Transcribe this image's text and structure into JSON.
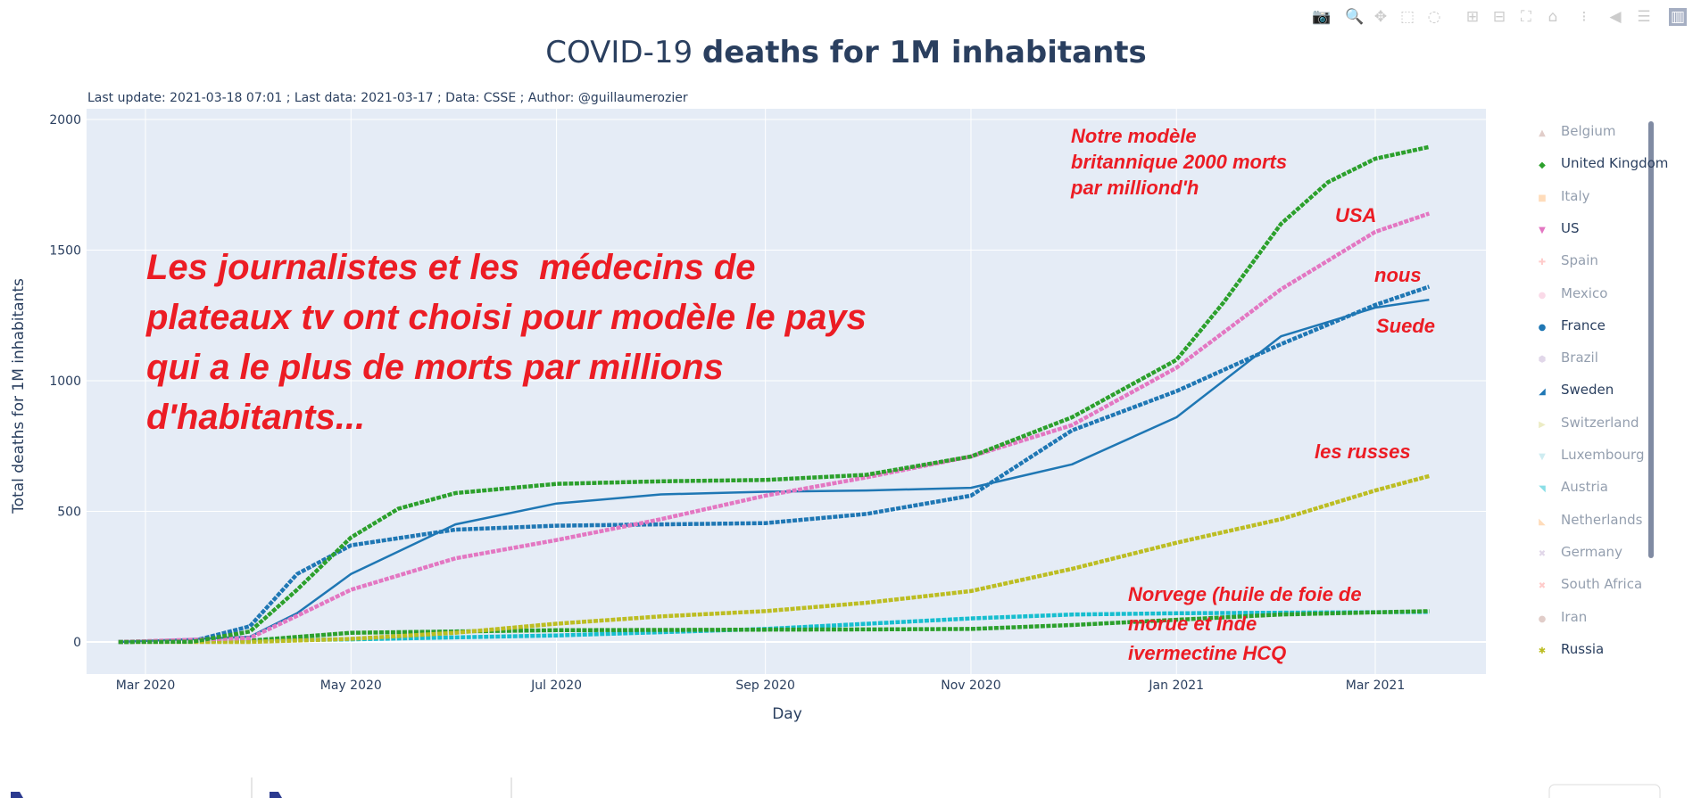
{
  "toolbar": {
    "icons": [
      "camera-icon",
      "zoom-icon",
      "pan-icon",
      "box-select-icon",
      "lasso-select-icon",
      "zoom-in-icon",
      "zoom-out-icon",
      "autoscale-icon",
      "reset-axes-icon",
      "spike-lines-icon",
      "hover-closest-icon",
      "hover-compare-icon",
      "plotly-logo-icon"
    ]
  },
  "chart_data": {
    "type": "line",
    "title_light": "COVID-19 ",
    "title_bold": "deaths for 1M inhabitants",
    "subtitle": "Last update: 2021-03-18 07:01 ; Last data: 2021-03-17 ; Data: CSSE ; Author: @guillaumerozier",
    "xlabel": "Day",
    "ylabel": "Total deaths  for 1M inhabitants",
    "xlim": [
      "2020-02-01",
      "2021-04-15"
    ],
    "ylim": [
      -120,
      2080
    ],
    "x_ticks": [
      "Mar 2020",
      "May 2020",
      "Jul 2020",
      "Sep 2020",
      "Nov 2020",
      "Jan 2021",
      "Mar 2021"
    ],
    "x_tick_dates": [
      "2020-03-01",
      "2020-05-01",
      "2020-07-01",
      "2020-09-01",
      "2020-11-01",
      "2021-01-01",
      "2021-03-01"
    ],
    "y_ticks": [
      0,
      500,
      1000,
      1500,
      2000
    ],
    "grid": true,
    "legend_position": "right",
    "series": [
      {
        "name": "United Kingdom",
        "color": "#2ca02c",
        "points": [
          [
            "2020-02-22",
            0
          ],
          [
            "2020-03-15",
            1
          ],
          [
            "2020-04-01",
            40
          ],
          [
            "2020-04-15",
            200
          ],
          [
            "2020-05-01",
            400
          ],
          [
            "2020-05-15",
            510
          ],
          [
            "2020-06-01",
            570
          ],
          [
            "2020-07-01",
            605
          ],
          [
            "2020-08-01",
            615
          ],
          [
            "2020-09-01",
            620
          ],
          [
            "2020-10-01",
            640
          ],
          [
            "2020-11-01",
            710
          ],
          [
            "2020-12-01",
            860
          ],
          [
            "2021-01-01",
            1080
          ],
          [
            "2021-01-15",
            1300
          ],
          [
            "2021-02-01",
            1600
          ],
          [
            "2021-02-15",
            1760
          ],
          [
            "2021-03-01",
            1850
          ],
          [
            "2021-03-17",
            1895
          ]
        ]
      },
      {
        "name": "US",
        "color": "#e377c2",
        "points": [
          [
            "2020-02-22",
            0
          ],
          [
            "2020-04-01",
            15
          ],
          [
            "2020-04-15",
            100
          ],
          [
            "2020-05-01",
            200
          ],
          [
            "2020-06-01",
            320
          ],
          [
            "2020-07-01",
            390
          ],
          [
            "2020-08-01",
            470
          ],
          [
            "2020-09-01",
            560
          ],
          [
            "2020-10-01",
            630
          ],
          [
            "2020-11-01",
            710
          ],
          [
            "2020-12-01",
            830
          ],
          [
            "2021-01-01",
            1050
          ],
          [
            "2021-02-01",
            1350
          ],
          [
            "2021-03-01",
            1570
          ],
          [
            "2021-03-17",
            1640
          ]
        ]
      },
      {
        "name": "France",
        "color": "#1f77b4",
        "points": [
          [
            "2020-02-22",
            0
          ],
          [
            "2020-03-15",
            3
          ],
          [
            "2020-04-01",
            60
          ],
          [
            "2020-04-15",
            260
          ],
          [
            "2020-05-01",
            370
          ],
          [
            "2020-06-01",
            430
          ],
          [
            "2020-07-01",
            445
          ],
          [
            "2020-08-01",
            450
          ],
          [
            "2020-09-01",
            455
          ],
          [
            "2020-10-01",
            490
          ],
          [
            "2020-11-01",
            560
          ],
          [
            "2020-12-01",
            810
          ],
          [
            "2021-01-01",
            960
          ],
          [
            "2021-02-01",
            1140
          ],
          [
            "2021-03-01",
            1290
          ],
          [
            "2021-03-17",
            1360
          ]
        ]
      },
      {
        "name": "Sweden",
        "color": "#1f77b4",
        "points": [
          [
            "2020-02-22",
            0
          ],
          [
            "2020-04-01",
            20
          ],
          [
            "2020-04-15",
            110
          ],
          [
            "2020-05-01",
            260
          ],
          [
            "2020-06-01",
            450
          ],
          [
            "2020-07-01",
            530
          ],
          [
            "2020-08-01",
            565
          ],
          [
            "2020-09-01",
            575
          ],
          [
            "2020-10-01",
            580
          ],
          [
            "2020-11-01",
            590
          ],
          [
            "2020-12-01",
            680
          ],
          [
            "2021-01-01",
            860
          ],
          [
            "2021-02-01",
            1170
          ],
          [
            "2021-03-01",
            1280
          ],
          [
            "2021-03-17",
            1310
          ]
        ]
      },
      {
        "name": "Russia",
        "color": "#bcbd22",
        "points": [
          [
            "2020-02-22",
            0
          ],
          [
            "2020-04-01",
            0
          ],
          [
            "2020-05-01",
            12
          ],
          [
            "2020-06-01",
            35
          ],
          [
            "2020-07-01",
            70
          ],
          [
            "2020-08-01",
            98
          ],
          [
            "2020-09-01",
            118
          ],
          [
            "2020-10-01",
            150
          ],
          [
            "2020-11-01",
            195
          ],
          [
            "2020-12-01",
            280
          ],
          [
            "2021-01-01",
            380
          ],
          [
            "2021-02-01",
            470
          ],
          [
            "2021-03-01",
            580
          ],
          [
            "2021-03-17",
            635
          ]
        ]
      },
      {
        "color": "#2ca02c",
        "points": [
          [
            "2020-02-22",
            0
          ],
          [
            "2020-04-01",
            5
          ],
          [
            "2020-05-01",
            35
          ],
          [
            "2020-07-01",
            45
          ],
          [
            "2020-10-01",
            48
          ],
          [
            "2020-11-01",
            50
          ],
          [
            "2020-12-01",
            65
          ],
          [
            "2021-01-01",
            85
          ],
          [
            "2021-02-01",
            105
          ],
          [
            "2021-03-17",
            118
          ]
        ]
      },
      {
        "color": "#17becf",
        "points": [
          [
            "2020-02-22",
            0
          ],
          [
            "2020-05-01",
            10
          ],
          [
            "2020-07-01",
            25
          ],
          [
            "2020-09-01",
            50
          ],
          [
            "2020-11-01",
            90
          ],
          [
            "2020-12-01",
            105
          ],
          [
            "2021-01-01",
            110
          ],
          [
            "2021-03-17",
            115
          ]
        ]
      }
    ],
    "legend": [
      {
        "name": "Belgium",
        "marker": "▲",
        "color": "#c49c94",
        "visible": false
      },
      {
        "name": "United Kingdom",
        "marker": "◆",
        "color": "#2ca02c",
        "visible": true
      },
      {
        "name": "Italy",
        "marker": "■",
        "color": "#ffbb78",
        "visible": false
      },
      {
        "name": "US",
        "marker": "▼",
        "color": "#e377c2",
        "visible": true
      },
      {
        "name": "Spain",
        "marker": "✚",
        "color": "#ff9896",
        "visible": false
      },
      {
        "name": "Mexico",
        "marker": "●",
        "color": "#f7b6d2",
        "visible": false
      },
      {
        "name": "France",
        "marker": "●",
        "color": "#1f77b4",
        "visible": true
      },
      {
        "name": "Brazil",
        "marker": "⬢",
        "color": "#c5b0d5",
        "visible": false
      },
      {
        "name": "Sweden",
        "marker": "◢",
        "color": "#1f77b4",
        "visible": true
      },
      {
        "name": "Switzerland",
        "marker": "▶",
        "color": "#dbdb8d",
        "visible": false
      },
      {
        "name": "Luxembourg",
        "marker": "▼",
        "color": "#9edae5",
        "visible": false
      },
      {
        "name": "Austria",
        "marker": "◥",
        "color": "#17becf",
        "visible": false
      },
      {
        "name": "Netherlands",
        "marker": "◣",
        "color": "#ffbb78",
        "visible": false
      },
      {
        "name": "Germany",
        "marker": "✖",
        "color": "#c5b0d5",
        "visible": false
      },
      {
        "name": "South Africa",
        "marker": "✖",
        "color": "#ff9896",
        "visible": false
      },
      {
        "name": "Iran",
        "marker": "●",
        "color": "#c49c94",
        "visible": false
      },
      {
        "name": "Russia",
        "marker": "✱",
        "color": "#bcbd22",
        "visible": true
      }
    ],
    "annotations": {
      "main": [
        "Les journalistes et les  médecins de",
        "plateaux tv ont choisi pour modèle le pays",
        "qui a le plus de morts par millions",
        "d'habitants..."
      ],
      "uk": [
        "Notre modèle",
        "britannique 2000 morts",
        "par milliond'h"
      ],
      "usa": "USA",
      "nous": "nous",
      "suede": "Suede",
      "russes": "les russes",
      "norvege": [
        "Norvege (huile de foie de",
        "morue et Inde",
        "ivermectine HCQ"
      ]
    }
  }
}
